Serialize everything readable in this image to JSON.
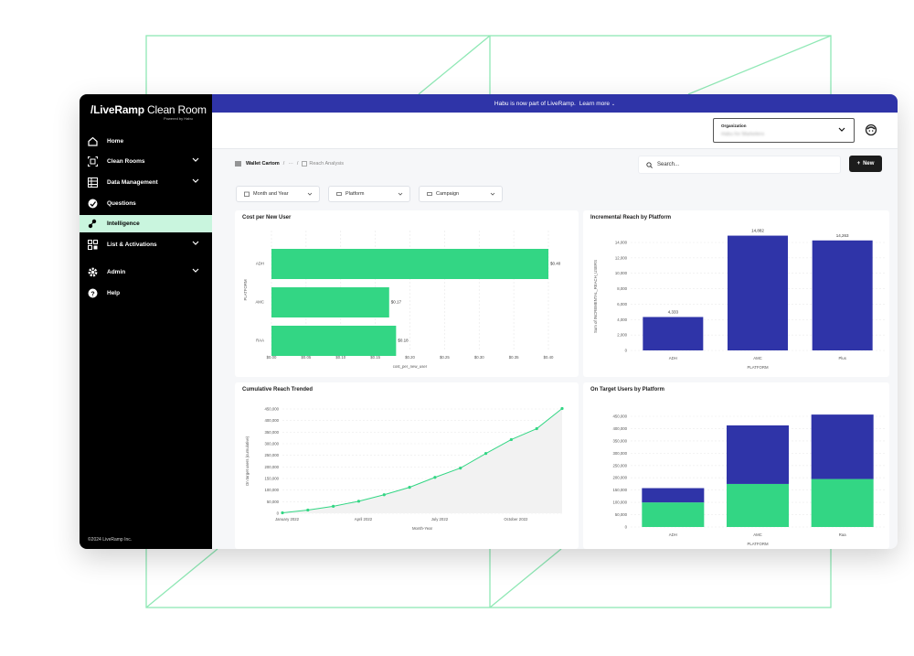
{
  "colors": {
    "green": "#33d684",
    "navy": "#2f34a8",
    "deco": "#8fe8b5"
  },
  "banner": {
    "text": "Habu is now part of LiveRamp.",
    "link": "Learn more"
  },
  "sidebar": {
    "logo_bold": "LiveRamp",
    "logo_thin": "Clean Room",
    "powered_by": "Powered by Habu",
    "items": [
      {
        "label": "Home",
        "icon": "home-icon",
        "chevron": false,
        "active": false
      },
      {
        "label": "Clean Rooms",
        "icon": "clean-rooms-icon",
        "chevron": true,
        "active": false
      },
      {
        "label": "Data Management",
        "icon": "data-grid-icon",
        "chevron": true,
        "active": false
      },
      {
        "label": "Questions",
        "icon": "questions-icon",
        "chevron": false,
        "active": false
      },
      {
        "label": "Intelligence",
        "icon": "intelligence-icon",
        "chevron": false,
        "active": true
      },
      {
        "label": "List & Activations",
        "icon": "list-icon",
        "chevron": true,
        "active": false
      },
      {
        "label": "Admin",
        "icon": "gear-icon",
        "chevron": true,
        "active": false
      },
      {
        "label": "Help",
        "icon": "help-icon",
        "chevron": false,
        "active": false
      }
    ],
    "copyright": "©2024 LiveRamp Inc."
  },
  "topbar": {
    "org_label": "Organization",
    "org_value": "Habu for Marketers"
  },
  "toolbar": {
    "crumb_root": "Wallet Cartom",
    "crumb_ellipsis": "···",
    "crumb_current": "Reach Analysis",
    "search_placeholder": "Search...",
    "new_label": "New"
  },
  "filters": [
    "Month and Year",
    "Platform",
    "Campaign"
  ],
  "charts": {
    "cost": {
      "title": "Cost per New User",
      "ylabel": "PLATFORM",
      "xlabel": "cost_per_new_user",
      "chart_data": {
        "type": "bar",
        "orientation": "horizontal",
        "categories": [
          "ADH",
          "AMC",
          "RAA"
        ],
        "values": [
          0.4,
          0.17,
          0.18
        ],
        "value_labels": [
          "$0.40",
          "$0.17",
          "$0.18"
        ],
        "xticks": [
          "$0.00",
          "$0.05",
          "$0.10",
          "$0.15",
          "$0.20",
          "$0.25",
          "$0.30",
          "$0.35",
          "$0.40"
        ],
        "xlim": [
          0,
          0.4
        ],
        "color": "#33d684"
      }
    },
    "incremental": {
      "title": "Incremental Reach by Platform",
      "ylabel": "Sum of INCREMENTAL_REACH_USERS",
      "xlabel": "PLATFORM",
      "chart_data": {
        "type": "bar",
        "categories": [
          "ADH",
          "AMC",
          "Plus"
        ],
        "values": [
          4333,
          14882,
          14263
        ],
        "value_labels": [
          "4,333",
          "14,882",
          "14,263"
        ],
        "yticks": [
          "0",
          "2,000",
          "4,000",
          "6,000",
          "8,000",
          "10,000",
          "12,000",
          "14,000"
        ],
        "ylim": [
          0,
          14000
        ],
        "color": "#2f34a8"
      }
    },
    "cumulative": {
      "title": "Cumulative Reach Trended",
      "ylabel": "On target users (cumulative)",
      "xlabel": "Month-Year",
      "chart_data": {
        "type": "line",
        "x": [
          "Jan 2022",
          "Feb 2022",
          "Mar 2022",
          "Apr 2022",
          "May 2022",
          "Jun 2022",
          "Jul 2022",
          "Aug 2022",
          "Sep 2022",
          "Oct 2022",
          "Nov 2022",
          "Dec 2022"
        ],
        "values": [
          2000,
          14000,
          30000,
          52000,
          80000,
          112000,
          155000,
          195000,
          258000,
          318000,
          365000,
          452000
        ],
        "xticks": [
          "January 2022",
          "April 2022",
          "July 2022",
          "October 2022"
        ],
        "yticks": [
          "0",
          "50,000",
          "100,000",
          "150,000",
          "200,000",
          "250,000",
          "300,000",
          "350,000",
          "400,000",
          "450,000"
        ],
        "ylim": [
          0,
          450000
        ],
        "color": "#33d684"
      }
    },
    "ontarget": {
      "title": "On Target Users by Platform",
      "xlabel": "PLATFORM",
      "chart_data": {
        "type": "bar",
        "stacked": true,
        "categories": [
          "ADH",
          "AMC",
          "Raa"
        ],
        "series": [
          {
            "values": [
              100000,
              175000,
              195000
            ],
            "color": "#33d684"
          },
          {
            "values": [
              58000,
              238000,
              262000
            ],
            "color": "#2f34a8"
          }
        ],
        "yticks": [
          "0",
          "50,000",
          "100,000",
          "150,000",
          "200,000",
          "250,000",
          "300,000",
          "350,000",
          "400,000",
          "450,000"
        ],
        "ylim": [
          0,
          450000
        ]
      }
    }
  }
}
